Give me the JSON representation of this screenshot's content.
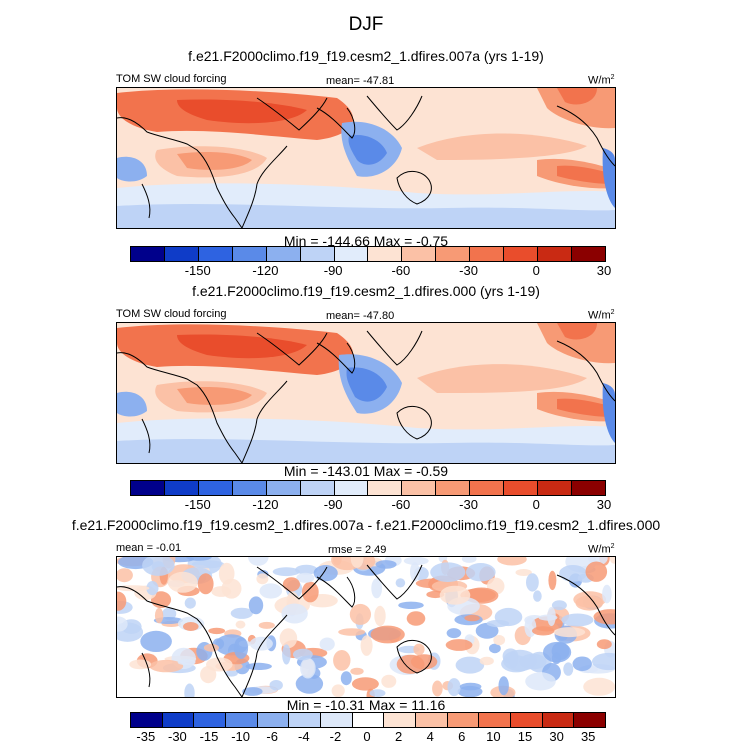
{
  "figure": {
    "title": "DJF"
  },
  "panels": [
    {
      "case_title": "f.e21.F2000climo.f19_f19.cesm2_1.dfires.007a (yrs 1-19)",
      "left_label": "TOM SW cloud forcing",
      "center_label": "mean= -47.81",
      "units": "W/m",
      "units_exp": "2",
      "minmax": "Min = -144.66 Max =  -0.75",
      "colorbar": {
        "colors": [
          "#00008b",
          "#0f3cc8",
          "#2e63e1",
          "#5a8ae8",
          "#8cb0ef",
          "#bed3f6",
          "#e1ecfb",
          "#fde3d3",
          "#fbc1a6",
          "#f79a75",
          "#f2734d",
          "#e94d2c",
          "#c92a13",
          "#8b0000"
        ],
        "ticks": [
          "-150",
          "-120",
          "-90",
          "-60",
          "-30",
          "0",
          "30"
        ]
      }
    },
    {
      "case_title": "f.e21.F2000climo.f19_f19.cesm2_1.dfires.000 (yrs 1-19)",
      "left_label": "TOM SW cloud forcing",
      "center_label": "mean= -47.80",
      "units": "W/m",
      "units_exp": "2",
      "minmax": "Min = -143.01 Max =  -0.59",
      "colorbar": {
        "colors": [
          "#00008b",
          "#0f3cc8",
          "#2e63e1",
          "#5a8ae8",
          "#8cb0ef",
          "#bed3f6",
          "#e1ecfb",
          "#fde3d3",
          "#fbc1a6",
          "#f79a75",
          "#f2734d",
          "#e94d2c",
          "#c92a13",
          "#8b0000"
        ],
        "ticks": [
          "-150",
          "-120",
          "-90",
          "-60",
          "-30",
          "0",
          "30"
        ]
      }
    },
    {
      "case_title": "f.e21.F2000climo.f19_f19.cesm2_1.dfires.007a - f.e21.F2000climo.f19_f19.cesm2_1.dfires.000",
      "left_label": "mean =  -0.01",
      "center_label": "rmse =  2.49",
      "units": "W/m",
      "units_exp": "2",
      "minmax": "Min = -10.31 Max =  11.16",
      "colorbar": {
        "colors": [
          "#00008b",
          "#0f3cc8",
          "#2e63e1",
          "#5a8ae8",
          "#8cb0ef",
          "#bed3f6",
          "#dde8f9",
          "#ffffff",
          "#fde3d3",
          "#fbc1a6",
          "#f79a75",
          "#f2734d",
          "#e94d2c",
          "#c92a13",
          "#8b0000"
        ],
        "ticks": [
          "-35",
          "-30",
          "-15",
          "-10",
          "-6",
          "-4",
          "-2",
          "0",
          "2",
          "4",
          "6",
          "10",
          "15",
          "30",
          "35"
        ]
      }
    }
  ],
  "chart_data": [
    {
      "type": "heatmap",
      "title": "DJF",
      "subtitle": "f.e21.F2000climo.f19_f19.cesm2_1.dfires.007a (yrs 1-19)",
      "variable": "TOM SW cloud forcing",
      "units": "W/m2",
      "mean": -47.81,
      "min": -144.66,
      "max": -0.75,
      "colorbar_ticks": [
        -150,
        -120,
        -90,
        -60,
        -30,
        0,
        30
      ]
    },
    {
      "type": "heatmap",
      "title": "DJF",
      "subtitle": "f.e21.F2000climo.f19_f19.cesm2_1.dfires.000 (yrs 1-19)",
      "variable": "TOM SW cloud forcing",
      "units": "W/m2",
      "mean": -47.8,
      "min": -143.01,
      "max": -0.59,
      "colorbar_ticks": [
        -150,
        -120,
        -90,
        -60,
        -30,
        0,
        30
      ]
    },
    {
      "type": "heatmap",
      "title": "DJF",
      "subtitle": "f.e21.F2000climo.f19_f19.cesm2_1.dfires.007a - f.e21.F2000climo.f19_f19.cesm2_1.dfires.000",
      "units": "W/m2",
      "mean": -0.01,
      "rmse": 2.49,
      "min": -10.31,
      "max": 11.16,
      "colorbar_ticks": [
        -35,
        -30,
        -15,
        -10,
        -6,
        -4,
        -2,
        0,
        2,
        4,
        6,
        10,
        15,
        30,
        35
      ]
    }
  ]
}
